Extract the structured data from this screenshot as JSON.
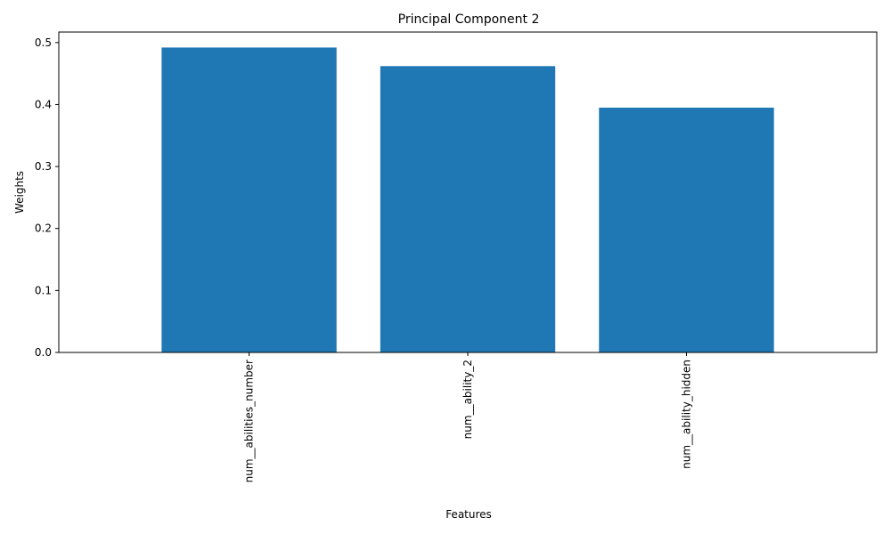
{
  "chart_data": {
    "type": "bar",
    "title": "Principal Component 2",
    "xlabel": "Features",
    "ylabel": "Weights",
    "categories": [
      "num__abilities_number",
      "num__ability_2",
      "num__ability_hidden"
    ],
    "values": [
      0.492,
      0.462,
      0.395
    ],
    "ylim": [
      0,
      0.517
    ],
    "yticks": [
      0.0,
      0.1,
      0.2,
      0.3,
      0.4,
      0.5
    ],
    "ytick_labels": [
      "0.0",
      "0.1",
      "0.2",
      "0.3",
      "0.4",
      "0.5"
    ],
    "bar_color": "#1f77b4",
    "grid": false,
    "legend": "none",
    "xtick_rotation": "vertical"
  }
}
